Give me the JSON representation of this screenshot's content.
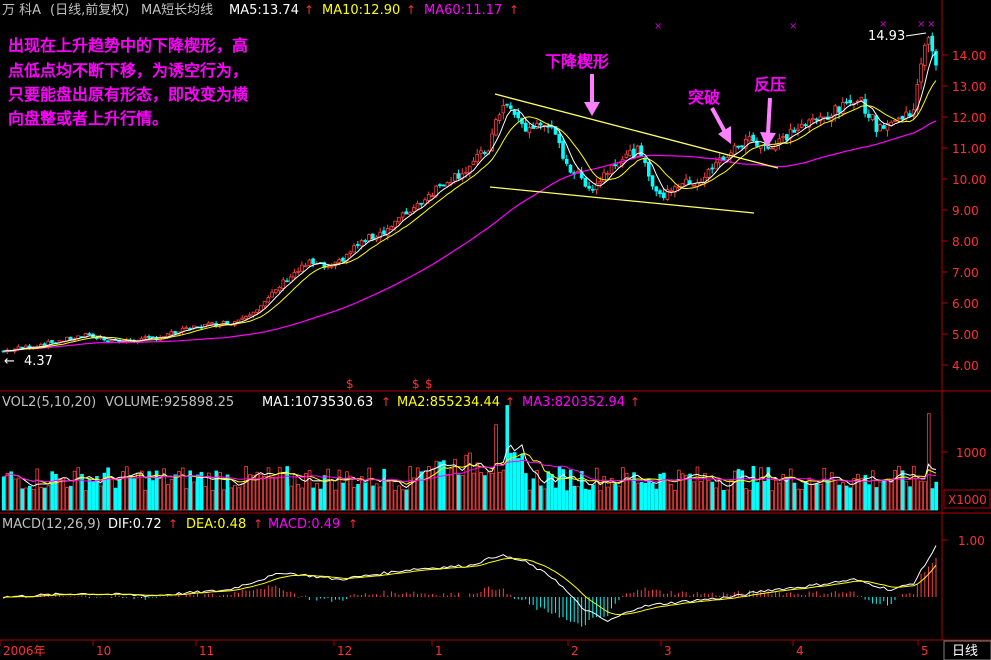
{
  "header": {
    "stock_name": "万 科A",
    "period": "(日线,前复权)",
    "indicator": "MA短长均线",
    "ma5": "MA5:13.74",
    "ma10": "MA10:12.90",
    "ma60": "MA60:11.17"
  },
  "annotation": {
    "lines": [
      "出现在上升趋势中的下降楔形，高",
      "点低点均不断下移，为诱空行为，",
      "只要能盘出原有形态，即改变为横",
      "向盘整或者上升行情。"
    ],
    "wedge_label": "下降楔形",
    "breakout_label": "突破",
    "pullback_label": "反压"
  },
  "price_marks": {
    "high": "14.93",
    "low": "4.37",
    "signal_glyph": "$"
  },
  "volume_header": {
    "title": "VOL2(5,10,20)",
    "volume": "VOLUME:925898.25",
    "ma1": "MA1:1073530.63",
    "ma2": "MA2:855234.44",
    "ma3": "MA3:820352.94"
  },
  "macd_header": {
    "title": "MACD(12,26,9)",
    "dif": "DIF:0.72",
    "dea": "DEA:0.48",
    "macd": "MACD:0.49"
  },
  "footer": {
    "period_button": "日线"
  },
  "colors": {
    "up": "#ff4040",
    "down": "#00ffff",
    "ma5": "#ffffff",
    "ma10": "#ffff00",
    "ma60": "#ff00ff",
    "annotation": "#ff00ff",
    "wedge_lines": "#ffff66",
    "arrow": "#ff80ff"
  },
  "chart_data": {
    "type": "candlestick",
    "price_axis": {
      "ticks": [
        "14.00",
        "13.00",
        "12.00",
        "11.00",
        "10.00",
        "9.00",
        "8.00",
        "7.00",
        "6.00",
        "5.00",
        "4.00"
      ],
      "ylim": [
        3.5,
        14.9
      ]
    },
    "volume_axis": {
      "ticks": [
        "1000"
      ],
      "unit": "X1000"
    },
    "macd_axis": {
      "ticks": [
        "1.00"
      ]
    },
    "x_labels": [
      "2006年",
      "10",
      "11",
      "12",
      "1",
      "2",
      "3",
      "4",
      "5"
    ],
    "close_anchors": [
      [
        0,
        4.45
      ],
      [
        12,
        4.7
      ],
      [
        22,
        4.95
      ],
      [
        32,
        4.75
      ],
      [
        42,
        4.9
      ],
      [
        52,
        5.25
      ],
      [
        62,
        5.4
      ],
      [
        70,
        6.0
      ],
      [
        76,
        6.8
      ],
      [
        82,
        7.3
      ],
      [
        88,
        7.1
      ],
      [
        95,
        7.9
      ],
      [
        103,
        8.4
      ],
      [
        112,
        9.3
      ],
      [
        118,
        9.9
      ],
      [
        124,
        10.3
      ],
      [
        130,
        11.0
      ],
      [
        134,
        12.5
      ],
      [
        140,
        11.6
      ],
      [
        146,
        11.8
      ],
      [
        152,
        10.3
      ],
      [
        158,
        9.7
      ],
      [
        164,
        10.6
      ],
      [
        170,
        10.9
      ],
      [
        176,
        9.4
      ],
      [
        180,
        9.8
      ],
      [
        187,
        9.95
      ],
      [
        192,
        10.6
      ],
      [
        200,
        11.3
      ],
      [
        206,
        11.0
      ],
      [
        212,
        11.6
      ],
      [
        218,
        11.9
      ],
      [
        225,
        12.3
      ],
      [
        229,
        12.7
      ],
      [
        234,
        11.7
      ],
      [
        240,
        11.9
      ],
      [
        244,
        12.3
      ],
      [
        246,
        13.6
      ],
      [
        248,
        14.7
      ],
      [
        250,
        13.74
      ]
    ],
    "macd_anchors": [
      [
        0,
        0.0
      ],
      [
        20,
        0.05
      ],
      [
        40,
        0.02
      ],
      [
        60,
        0.1
      ],
      [
        75,
        0.35
      ],
      [
        90,
        0.25
      ],
      [
        110,
        0.4
      ],
      [
        125,
        0.45
      ],
      [
        133,
        0.6
      ],
      [
        140,
        0.5
      ],
      [
        148,
        0.25
      ],
      [
        155,
        -0.15
      ],
      [
        162,
        -0.35
      ],
      [
        170,
        -0.15
      ],
      [
        176,
        -0.1
      ],
      [
        185,
        -0.05
      ],
      [
        195,
        0.0
      ],
      [
        205,
        0.1
      ],
      [
        215,
        0.15
      ],
      [
        228,
        0.25
      ],
      [
        238,
        0.1
      ],
      [
        244,
        0.2
      ],
      [
        250,
        0.72
      ]
    ]
  }
}
